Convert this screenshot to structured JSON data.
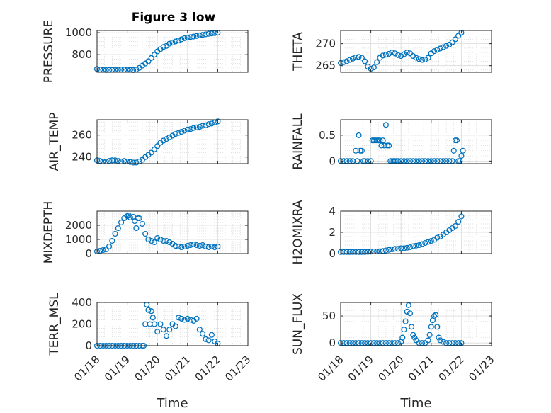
{
  "figure": {
    "title": "Figure 3 low",
    "marker_color": "#0072BD"
  },
  "chart_data": [
    {
      "type": "scatter",
      "title": "Figure 3 low",
      "ylabel": "PRESSURE",
      "xlabel": "",
      "xlim": [
        0,
        5
      ],
      "ylim": [
        640,
        1020
      ],
      "yticks": [
        800,
        1000
      ],
      "xtick_labels": [],
      "x": [
        0.0,
        0.1,
        0.2,
        0.3,
        0.4,
        0.5,
        0.6,
        0.7,
        0.8,
        0.9,
        1.0,
        1.1,
        1.2,
        1.3,
        1.4,
        1.5,
        1.6,
        1.7,
        1.8,
        1.9,
        2.0,
        2.1,
        2.2,
        2.3,
        2.4,
        2.5,
        2.6,
        2.7,
        2.8,
        2.9,
        3.0,
        3.1,
        3.2,
        3.3,
        3.4,
        3.5,
        3.6,
        3.7,
        3.8,
        3.9,
        4.0
      ],
      "y": [
        670,
        665,
        662,
        660,
        661,
        662,
        663,
        664,
        665,
        664,
        663,
        662,
        660,
        665,
        680,
        700,
        720,
        740,
        770,
        800,
        830,
        850,
        870,
        880,
        900,
        910,
        920,
        930,
        940,
        950,
        955,
        960,
        965,
        970,
        975,
        980,
        985,
        990,
        993,
        996,
        1000
      ]
    },
    {
      "type": "scatter",
      "ylabel": "THETA",
      "xlabel": "",
      "xlim": [
        0,
        5
      ],
      "ylim": [
        263.5,
        273
      ],
      "yticks": [
        265,
        270
      ],
      "xtick_labels": [],
      "x": [
        0.0,
        0.1,
        0.2,
        0.3,
        0.4,
        0.5,
        0.6,
        0.7,
        0.8,
        0.9,
        1.0,
        1.1,
        1.2,
        1.3,
        1.4,
        1.5,
        1.6,
        1.7,
        1.8,
        1.9,
        2.0,
        2.1,
        2.2,
        2.3,
        2.4,
        2.5,
        2.6,
        2.7,
        2.8,
        2.9,
        3.0,
        3.1,
        3.2,
        3.3,
        3.4,
        3.5,
        3.6,
        3.7,
        3.8,
        3.9,
        4.0
      ],
      "y": [
        265.6,
        265.8,
        266.0,
        266.3,
        266.6,
        266.9,
        267.0,
        266.8,
        266.0,
        264.8,
        264.3,
        264.6,
        265.8,
        266.8,
        267.3,
        267.5,
        267.7,
        268.0,
        267.8,
        267.4,
        267.2,
        267.6,
        268.0,
        267.8,
        267.2,
        266.8,
        266.5,
        266.3,
        266.4,
        266.8,
        267.8,
        268.3,
        268.6,
        268.9,
        269.2,
        269.5,
        269.8,
        270.3,
        271.0,
        271.8,
        272.5
      ]
    },
    {
      "type": "scatter",
      "ylabel": "AIR_TEMP",
      "xlabel": "",
      "xlim": [
        0,
        5
      ],
      "ylim": [
        234,
        274
      ],
      "yticks": [
        240,
        260
      ],
      "xtick_labels": [],
      "x": [
        0.0,
        0.1,
        0.2,
        0.3,
        0.4,
        0.5,
        0.6,
        0.7,
        0.8,
        0.9,
        1.0,
        1.1,
        1.2,
        1.3,
        1.4,
        1.5,
        1.6,
        1.7,
        1.8,
        1.9,
        2.0,
        2.1,
        2.2,
        2.3,
        2.4,
        2.5,
        2.6,
        2.7,
        2.8,
        2.9,
        3.0,
        3.1,
        3.2,
        3.3,
        3.4,
        3.5,
        3.6,
        3.7,
        3.8,
        3.9,
        4.0
      ],
      "y": [
        237,
        236.5,
        236,
        236,
        236.5,
        237,
        237,
        236.5,
        236,
        236.5,
        236,
        235.5,
        235,
        235,
        236,
        237.5,
        240,
        242,
        244,
        247,
        250,
        253,
        255,
        256.5,
        258,
        259.5,
        261,
        262,
        263,
        264,
        265,
        265.5,
        266.5,
        267,
        267.5,
        268.5,
        269,
        270,
        270.5,
        271.5,
        272.5
      ]
    },
    {
      "type": "scatter",
      "ylabel": "RAINFALL",
      "xlabel": "",
      "xlim": [
        0,
        5
      ],
      "ylim": [
        -0.05,
        0.8
      ],
      "yticks": [
        0,
        0.5
      ],
      "xtick_labels": [],
      "x": [
        0.0,
        0.1,
        0.2,
        0.3,
        0.4,
        0.5,
        0.55,
        0.6,
        0.65,
        0.7,
        0.75,
        0.8,
        0.9,
        1.0,
        1.05,
        1.1,
        1.15,
        1.2,
        1.25,
        1.3,
        1.35,
        1.4,
        1.45,
        1.5,
        1.55,
        1.6,
        1.65,
        1.7,
        1.75,
        1.8,
        1.85,
        1.9,
        2.0,
        2.1,
        2.2,
        2.3,
        2.4,
        2.5,
        2.6,
        2.7,
        2.8,
        2.9,
        3.0,
        3.1,
        3.2,
        3.3,
        3.4,
        3.5,
        3.6,
        3.7,
        3.75,
        3.8,
        3.85,
        3.9,
        3.95,
        4.0,
        4.05
      ],
      "y": [
        0,
        0,
        0,
        0,
        0,
        0.2,
        0,
        0.5,
        0.2,
        0.2,
        0,
        0,
        0,
        0,
        0.4,
        0.4,
        0.4,
        0.4,
        0.4,
        0.4,
        0.3,
        0.4,
        0.3,
        0.7,
        0.3,
        0.3,
        0,
        0,
        0,
        0,
        0,
        0,
        0,
        0,
        0,
        0,
        0,
        0,
        0,
        0,
        0,
        0,
        0,
        0,
        0,
        0,
        0,
        0,
        0,
        0,
        0.2,
        0.4,
        0.4,
        0,
        0,
        0.1,
        0.2
      ]
    },
    {
      "type": "scatter",
      "ylabel": "MIXDEPTH",
      "xlabel": "",
      "xlim": [
        0,
        5
      ],
      "ylim": [
        0,
        3000
      ],
      "yticks": [
        0,
        1000,
        2000
      ],
      "xtick_labels": [],
      "x": [
        0.0,
        0.1,
        0.2,
        0.3,
        0.4,
        0.5,
        0.6,
        0.7,
        0.8,
        0.9,
        1.0,
        1.05,
        1.1,
        1.2,
        1.25,
        1.3,
        1.35,
        1.4,
        1.5,
        1.6,
        1.7,
        1.8,
        1.9,
        2.0,
        2.1,
        2.2,
        2.3,
        2.4,
        2.5,
        2.6,
        2.7,
        2.8,
        2.9,
        3.0,
        3.1,
        3.2,
        3.3,
        3.4,
        3.5,
        3.6,
        3.7,
        3.8,
        3.9,
        4.0
      ],
      "y": [
        150,
        200,
        250,
        300,
        500,
        900,
        1400,
        1800,
        2200,
        2500,
        2650,
        2700,
        2550,
        2600,
        2300,
        1800,
        2500,
        2500,
        2100,
        1400,
        1000,
        900,
        800,
        1100,
        1000,
        900,
        900,
        800,
        700,
        550,
        500,
        450,
        500,
        550,
        600,
        650,
        600,
        550,
        600,
        500,
        450,
        500,
        450,
        500
      ]
    },
    {
      "type": "scatter",
      "ylabel": "H2OMIXRA",
      "xlabel": "",
      "xlim": [
        0,
        5
      ],
      "ylim": [
        0,
        4
      ],
      "yticks": [
        0,
        2,
        4
      ],
      "xtick_labels": [],
      "x": [
        0.0,
        0.1,
        0.2,
        0.3,
        0.4,
        0.5,
        0.6,
        0.7,
        0.8,
        0.9,
        1.0,
        1.1,
        1.2,
        1.3,
        1.4,
        1.5,
        1.6,
        1.7,
        1.8,
        1.9,
        2.0,
        2.1,
        2.2,
        2.3,
        2.4,
        2.5,
        2.6,
        2.7,
        2.8,
        2.9,
        3.0,
        3.1,
        3.2,
        3.3,
        3.4,
        3.5,
        3.6,
        3.7,
        3.8,
        3.9,
        4.0
      ],
      "y": [
        0.15,
        0.15,
        0.15,
        0.15,
        0.15,
        0.15,
        0.15,
        0.15,
        0.15,
        0.17,
        0.18,
        0.2,
        0.2,
        0.22,
        0.25,
        0.3,
        0.35,
        0.4,
        0.45,
        0.45,
        0.5,
        0.5,
        0.55,
        0.6,
        0.7,
        0.75,
        0.8,
        0.9,
        1.0,
        1.1,
        1.2,
        1.3,
        1.5,
        1.6,
        1.8,
        2.0,
        2.2,
        2.4,
        2.6,
        3.0,
        3.5
      ]
    },
    {
      "type": "scatter",
      "ylabel": "TERR_MSL",
      "xlabel": "Time",
      "xlim": [
        0,
        5
      ],
      "ylim": [
        0,
        400
      ],
      "yticks": [
        0,
        200,
        400
      ],
      "xtick_labels": [
        "01/18",
        "01/19",
        "01/20",
        "01/21",
        "01/22",
        "01/23"
      ],
      "x": [
        0.0,
        0.1,
        0.2,
        0.3,
        0.4,
        0.5,
        0.6,
        0.7,
        0.8,
        0.9,
        1.0,
        1.1,
        1.2,
        1.3,
        1.4,
        1.5,
        1.55,
        1.6,
        1.65,
        1.7,
        1.75,
        1.8,
        1.85,
        1.9,
        2.0,
        2.1,
        2.2,
        2.3,
        2.4,
        2.5,
        2.6,
        2.7,
        2.8,
        2.9,
        3.0,
        3.1,
        3.2,
        3.3,
        3.4,
        3.5,
        3.6,
        3.7,
        3.8,
        3.9,
        4.0
      ],
      "y": [
        0,
        0,
        0,
        0,
        0,
        0,
        0,
        0,
        0,
        0,
        0,
        0,
        0,
        0,
        0,
        0,
        0,
        200,
        380,
        330,
        200,
        320,
        260,
        200,
        130,
        200,
        150,
        90,
        150,
        200,
        180,
        260,
        250,
        240,
        250,
        240,
        230,
        250,
        150,
        110,
        60,
        50,
        100,
        40,
        20
      ]
    },
    {
      "type": "scatter",
      "ylabel": "SUN_FLUX",
      "xlabel": "Time",
      "xlim": [
        0,
        5
      ],
      "ylim": [
        -5,
        75
      ],
      "yticks": [
        0,
        50
      ],
      "xtick_labels": [
        "01/18",
        "01/19",
        "01/20",
        "01/21",
        "01/22",
        "01/23"
      ],
      "x": [
        0.0,
        0.1,
        0.2,
        0.3,
        0.4,
        0.5,
        0.6,
        0.7,
        0.8,
        0.9,
        1.0,
        1.1,
        1.2,
        1.3,
        1.4,
        1.5,
        1.6,
        1.7,
        1.8,
        1.9,
        2.0,
        2.05,
        2.1,
        2.15,
        2.2,
        2.25,
        2.3,
        2.35,
        2.4,
        2.45,
        2.5,
        2.6,
        2.7,
        2.8,
        2.9,
        2.95,
        3.0,
        3.05,
        3.1,
        3.15,
        3.2,
        3.25,
        3.3,
        3.4,
        3.5,
        3.6,
        3.7,
        3.8,
        3.9,
        4.0
      ],
      "y": [
        0,
        0,
        0,
        0,
        0,
        0,
        0,
        0,
        0,
        0,
        0,
        0,
        0,
        0,
        0,
        0,
        0,
        0,
        0,
        0,
        2,
        10,
        25,
        40,
        58,
        70,
        55,
        30,
        15,
        10,
        5,
        0,
        0,
        0,
        5,
        15,
        30,
        42,
        50,
        52,
        30,
        10,
        5,
        2,
        0,
        0,
        0,
        0,
        0,
        0
      ]
    }
  ]
}
